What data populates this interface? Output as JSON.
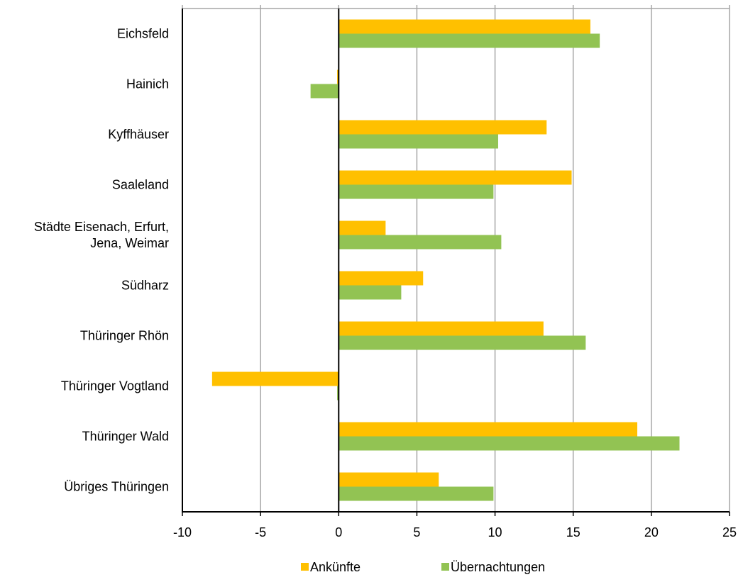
{
  "chart_data": {
    "type": "bar",
    "orientation": "horizontal",
    "categories": [
      "Eichsfeld",
      "Hainich",
      "Kyffhäuser",
      "Saaleland",
      "Städte Eisenach, Erfurt, Jena, Weimar",
      "Südharz",
      "Thüringer Rhön",
      "Thüringer Vogtland",
      "Thüringer Wald",
      "Übriges Thüringen"
    ],
    "category_label_lines": [
      [
        "Eichsfeld"
      ],
      [
        "Hainich"
      ],
      [
        "Kyffhäuser"
      ],
      [
        "Saaleland"
      ],
      [
        "Städte Eisenach, Erfurt,",
        "Jena, Weimar"
      ],
      [
        "Südharz"
      ],
      [
        "Thüringer Rhön"
      ],
      [
        "Thüringer Vogtland"
      ],
      [
        "Thüringer Wald"
      ],
      [
        "Übriges Thüringen"
      ]
    ],
    "series": [
      {
        "name": "Ankünfte",
        "color": "#FFC000",
        "values": [
          16.1,
          -0.1,
          13.3,
          14.9,
          3.0,
          5.4,
          13.1,
          -8.1,
          19.1,
          6.4
        ]
      },
      {
        "name": "Übernachtungen",
        "color": "#92C353",
        "values": [
          16.7,
          -1.8,
          10.2,
          9.9,
          10.4,
          4.0,
          15.8,
          -0.1,
          21.8,
          9.9
        ]
      }
    ],
    "xlim": [
      -10,
      25
    ],
    "xticks": [
      -10,
      -5,
      0,
      5,
      10,
      15,
      20,
      25
    ],
    "grid": "vertical",
    "legend_position": "bottom"
  }
}
